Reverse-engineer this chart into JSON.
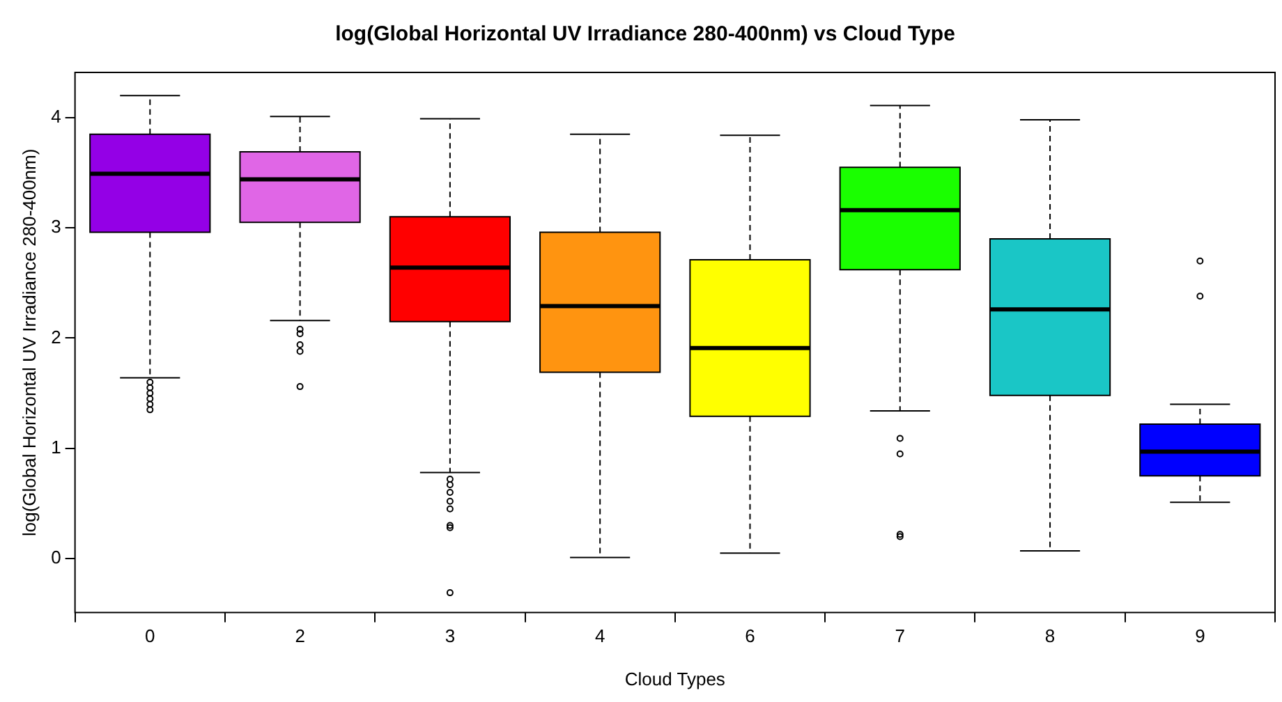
{
  "chart_data": {
    "type": "box",
    "title": "log(Global Horizontal UV Irradiance 280-400nm) vs Cloud Type",
    "xlabel": "Cloud Types",
    "ylabel": "log(Global Horizontal UV Irradiance 280-400nm)",
    "categories": [
      "0",
      "2",
      "3",
      "4",
      "6",
      "7",
      "8",
      "9"
    ],
    "colors": [
      "#9400e6",
      "#e066e6",
      "#ff0000",
      "#ff9410",
      "#ffff00",
      "#1aff00",
      "#1ac6c6",
      "#0000ff"
    ],
    "boxes": [
      {
        "low": 1.64,
        "q1": 2.96,
        "median": 3.49,
        "q3": 3.85,
        "high": 4.2,
        "outliers": [
          1.6,
          1.55,
          1.5,
          1.45,
          1.4,
          1.35
        ]
      },
      {
        "low": 2.16,
        "q1": 3.05,
        "median": 3.44,
        "q3": 3.69,
        "high": 4.01,
        "outliers": [
          2.08,
          2.04,
          1.94,
          1.88,
          1.56
        ]
      },
      {
        "low": 0.78,
        "q1": 2.15,
        "median": 2.64,
        "q3": 3.1,
        "high": 3.99,
        "outliers": [
          0.72,
          0.67,
          0.6,
          0.52,
          0.45,
          0.3,
          0.28,
          -0.31
        ]
      },
      {
        "low": 0.01,
        "q1": 1.69,
        "median": 2.29,
        "q3": 2.96,
        "high": 3.85
      },
      {
        "low": 0.05,
        "q1": 1.29,
        "median": 1.91,
        "q3": 2.71,
        "high": 3.84
      },
      {
        "low": 1.34,
        "q1": 2.62,
        "median": 3.16,
        "q3": 3.55,
        "high": 4.11,
        "outliers": [
          1.09,
          0.95,
          0.22,
          0.2
        ]
      },
      {
        "low": 0.07,
        "q1": 1.48,
        "median": 2.26,
        "q3": 2.9,
        "high": 3.98
      },
      {
        "low": 0.51,
        "q1": 0.75,
        "median": 0.97,
        "q3": 1.22,
        "high": 1.4,
        "outliers": [
          2.7,
          2.38
        ]
      }
    ],
    "ylim": [
      -0.49,
      4.41
    ],
    "yticks": [
      0,
      1,
      2,
      3,
      4
    ],
    "grid": false,
    "legend": false
  }
}
